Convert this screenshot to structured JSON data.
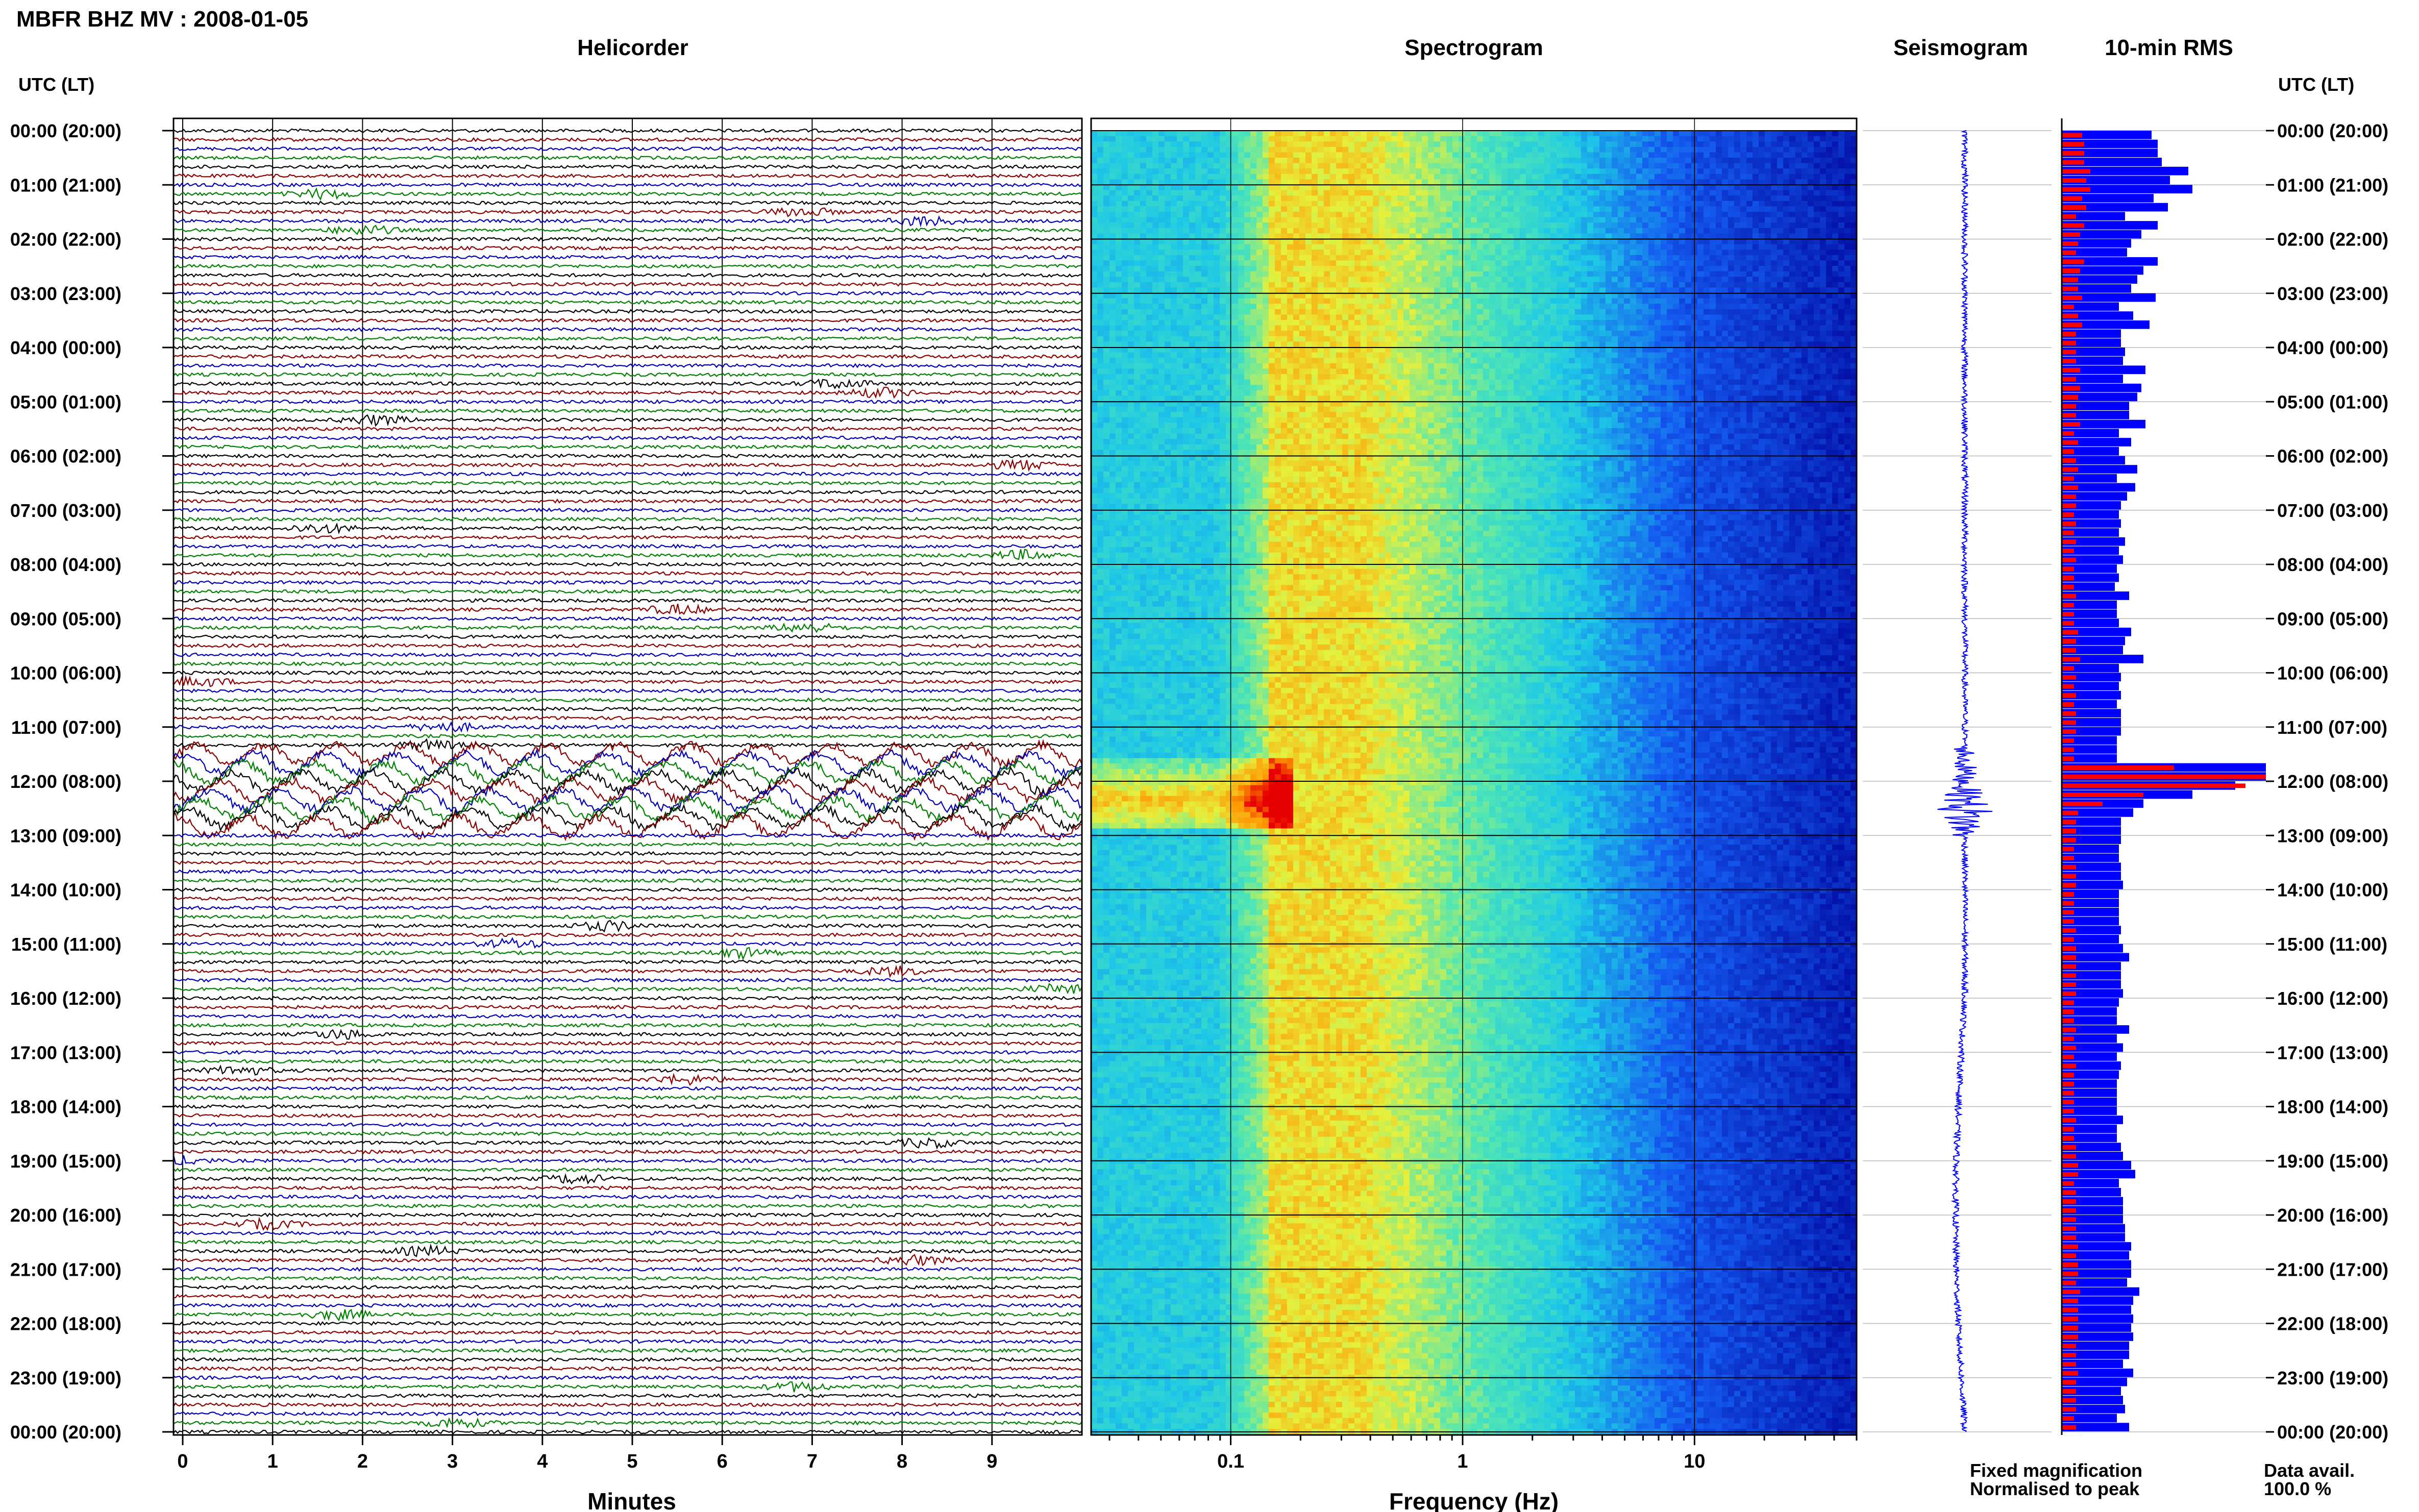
{
  "page": {
    "title": "MBFR BHZ MV : 2008-01-05",
    "utc_header_left": "UTC (LT)",
    "utc_header_right": "UTC (LT)"
  },
  "panels": {
    "helicorder": {
      "title": "Helicorder",
      "xlabel": "Minutes"
    },
    "spectrogram": {
      "title": "Spectrogram",
      "xlabel": "Frequency (Hz)"
    },
    "seismogram": {
      "title": "Seismogram"
    },
    "rms": {
      "title": "10-min RMS"
    }
  },
  "legend": {
    "fixed": "Fixed magnification",
    "normalised": "Normalised to peak",
    "avail_label": "Data avail.",
    "avail_value": "100.0 %"
  },
  "colors": {
    "trace_cycle": [
      "#000000",
      "#8b0000",
      "#0000b4",
      "#008000"
    ],
    "rms_fixed": "#0000ff",
    "rms_normalised": "#ff0000",
    "grid": "#000000",
    "spectro_low": "#0000a0",
    "spectro_high": "#ff0000"
  },
  "chart_data": {
    "type": "heatmap",
    "time_labels": [
      "00:00 (20:00)",
      "01:00 (21:00)",
      "02:00 (22:00)",
      "03:00 (23:00)",
      "04:00 (00:00)",
      "05:00 (01:00)",
      "06:00 (02:00)",
      "07:00 (03:00)",
      "08:00 (04:00)",
      "09:00 (05:00)",
      "10:00 (06:00)",
      "11:00 (07:00)",
      "12:00 (08:00)",
      "13:00 (09:00)",
      "14:00 (10:00)",
      "15:00 (11:00)",
      "16:00 (12:00)",
      "17:00 (13:00)",
      "18:00 (14:00)",
      "19:00 (15:00)",
      "20:00 (16:00)",
      "21:00 (17:00)",
      "22:00 (18:00)",
      "23:00 (19:00)",
      "00:00 (20:00)"
    ],
    "helicorder_minutes_ticks": [
      "0",
      "1",
      "2",
      "3",
      "4",
      "5",
      "6",
      "7",
      "8",
      "9"
    ],
    "helicorder_xlim": [
      0,
      10
    ],
    "spectrogram_freq_ticks": [
      "0.1",
      "1",
      "10"
    ],
    "spectrogram_xlim_hz": [
      0.025,
      50
    ],
    "spectrogram_xscale": "log",
    "event_window_utc": [
      "11:30",
      "12:50"
    ],
    "rms_fixed": [
      0.44,
      0.47,
      0.47,
      0.49,
      0.62,
      0.53,
      0.64,
      0.45,
      0.52,
      0.31,
      0.47,
      0.39,
      0.34,
      0.32,
      0.47,
      0.4,
      0.37,
      0.34,
      0.46,
      0.28,
      0.35,
      0.43,
      0.29,
      0.29,
      0.31,
      0.3,
      0.41,
      0.3,
      0.39,
      0.37,
      0.33,
      0.33,
      0.41,
      0.28,
      0.34,
      0.28,
      0.31,
      0.37,
      0.27,
      0.36,
      0.32,
      0.29,
      0.28,
      0.29,
      0.28,
      0.31,
      0.28,
      0.3,
      0.27,
      0.28,
      0.26,
      0.33,
      0.27,
      0.27,
      0.28,
      0.34,
      0.31,
      0.3,
      0.4,
      0.28,
      0.29,
      0.28,
      0.29,
      0.27,
      0.29,
      0.29,
      0.29,
      0.27,
      0.27,
      0.27,
      1.0,
      1.0,
      0.85,
      0.64,
      0.4,
      0.35,
      0.29,
      0.29,
      0.29,
      0.28,
      0.28,
      0.29,
      0.29,
      0.3,
      0.28,
      0.28,
      0.28,
      0.28,
      0.29,
      0.28,
      0.3,
      0.33,
      0.29,
      0.29,
      0.29,
      0.3,
      0.28,
      0.27,
      0.27,
      0.33,
      0.27,
      0.3,
      0.27,
      0.29,
      0.28,
      0.27,
      0.27,
      0.27,
      0.27,
      0.3,
      0.27,
      0.27,
      0.29,
      0.3,
      0.34,
      0.36,
      0.28,
      0.29,
      0.3,
      0.3,
      0.3,
      0.31,
      0.31,
      0.34,
      0.33,
      0.34,
      0.34,
      0.32,
      0.38,
      0.35,
      0.34,
      0.35,
      0.34,
      0.35,
      0.33,
      0.33,
      0.3,
      0.35,
      0.32,
      0.29,
      0.3,
      0.31,
      0.27,
      0.33
    ],
    "rms_normalised": [
      0.1,
      0.11,
      0.11,
      0.11,
      0.14,
      0.12,
      0.14,
      0.1,
      0.12,
      0.07,
      0.11,
      0.09,
      0.08,
      0.07,
      0.11,
      0.09,
      0.08,
      0.08,
      0.1,
      0.06,
      0.08,
      0.1,
      0.07,
      0.07,
      0.07,
      0.07,
      0.09,
      0.07,
      0.09,
      0.08,
      0.07,
      0.07,
      0.09,
      0.06,
      0.08,
      0.06,
      0.07,
      0.08,
      0.06,
      0.08,
      0.07,
      0.07,
      0.06,
      0.07,
      0.06,
      0.07,
      0.06,
      0.07,
      0.06,
      0.06,
      0.06,
      0.07,
      0.06,
      0.06,
      0.06,
      0.08,
      0.07,
      0.07,
      0.09,
      0.06,
      0.07,
      0.06,
      0.07,
      0.06,
      0.07,
      0.07,
      0.07,
      0.06,
      0.06,
      0.06,
      0.55,
      1.0,
      0.9,
      0.4,
      0.2,
      0.08,
      0.07,
      0.07,
      0.07,
      0.06,
      0.06,
      0.07,
      0.07,
      0.07,
      0.06,
      0.06,
      0.06,
      0.06,
      0.07,
      0.06,
      0.07,
      0.07,
      0.07,
      0.07,
      0.07,
      0.07,
      0.06,
      0.06,
      0.06,
      0.07,
      0.06,
      0.07,
      0.06,
      0.07,
      0.06,
      0.06,
      0.06,
      0.06,
      0.06,
      0.07,
      0.06,
      0.06,
      0.07,
      0.07,
      0.08,
      0.08,
      0.06,
      0.07,
      0.07,
      0.07,
      0.07,
      0.07,
      0.07,
      0.08,
      0.07,
      0.08,
      0.08,
      0.07,
      0.09,
      0.08,
      0.08,
      0.08,
      0.08,
      0.08,
      0.07,
      0.07,
      0.07,
      0.08,
      0.07,
      0.07,
      0.07,
      0.07,
      0.06,
      0.07
    ]
  }
}
